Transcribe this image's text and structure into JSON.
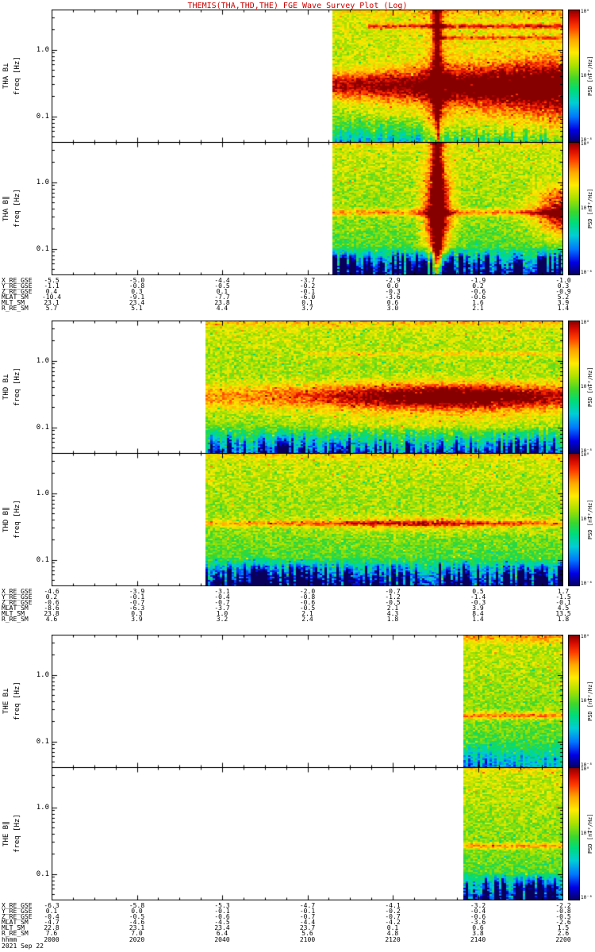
{
  "title": "THEMIS(THA,THD,THE) FGE Wave Survey Plot (Log)",
  "colors": {
    "title": "#cc0000",
    "axis_text": "#000000",
    "background": "#ffffff",
    "colormap_low": "#08005a",
    "colormap_mid": "#ffeb00",
    "colormap_high": "#870000"
  },
  "yaxis": {
    "label": "freq [Hz]",
    "tick_labels": [
      "1.0",
      "0.1"
    ],
    "range_hz": [
      0.04,
      4
    ],
    "scale": "log"
  },
  "colorbar": {
    "label": "PSD [nT²/Hz]",
    "tick_labels": [
      "10⁰",
      "10⁻⁴",
      "10⁻⁸"
    ]
  },
  "time_axis": {
    "label": "hhmm",
    "tick_labels": [
      "2000",
      "2020",
      "2040",
      "2100",
      "2120",
      "2140",
      "2200"
    ],
    "date": "2021 Sep 22"
  },
  "ephemeris_row_labels": [
    "X_RE_GSE",
    "Y_RE_GSE",
    "Z_RE_GSE",
    "MLAT_SM",
    "MLT_SM",
    "R_RE_SM"
  ],
  "groups": [
    {
      "probe": "THA",
      "ephemeris": {
        "X_RE_GSE": [
          "-5.5",
          "-5.0",
          "-4.4",
          "-3.7",
          "-2.9",
          "-1.9",
          "-1.0"
        ],
        "Y_RE_GSE": [
          "-1.1",
          "-0.8",
          "-0.5",
          "-0.2",
          "0.0",
          "0.2",
          "0.3"
        ],
        "Z_RE_GSE": [
          "0.4",
          "0.3",
          "0.1",
          "-0.1",
          "-0.3",
          "-0.6",
          "-0.9"
        ],
        "MLAT_SM": [
          "-10.4",
          "-9.1",
          "-7.7",
          "-6.0",
          "-3.6",
          "-0.6",
          "5.2"
        ],
        "MLT_SM": [
          "23.1",
          "23.4",
          "23.8",
          "0.1",
          "0.6",
          "1.6",
          "3.9"
        ],
        "R_RE_SM": [
          "5.7",
          "5.1",
          "4.4",
          "3.7",
          "3.0",
          "2.1",
          "1.4"
        ]
      }
    },
    {
      "probe": "THD",
      "ephemeris": {
        "X_RE_GSE": [
          "-4.6",
          "-3.9",
          "-3.1",
          "-2.0",
          "-0.7",
          "0.5",
          "1.7"
        ],
        "Y_RE_GSE": [
          "0.2",
          "-0.1",
          "-0.4",
          "-0.8",
          "-1.2",
          "-1.4",
          "-1.5"
        ],
        "Z_RE_GSE": [
          "-0.6",
          "-0.7",
          "-0.7",
          "-0.6",
          "-0.5",
          "-0.3",
          "-0.1"
        ],
        "MLAT_SM": [
          "-8.6",
          "-6.3",
          "-3.7",
          "-0.5",
          "2.1",
          "3.9",
          "4.5"
        ],
        "MLT_SM": [
          "23.8",
          "0.3",
          "1.0",
          "2.1",
          "4.3",
          "8.4",
          "13.5"
        ],
        "R_RE_SM": [
          "4.6",
          "3.9",
          "3.2",
          "2.4",
          "1.8",
          "1.4",
          "1.8"
        ]
      }
    },
    {
      "probe": "THE",
      "ephemeris": {
        "X_RE_GSE": [
          "-6.3",
          "-5.8",
          "-5.3",
          "-4.7",
          "-4.1",
          "-3.2",
          "-2.2"
        ],
        "Y_RE_GSE": [
          "0.1",
          "0.0",
          "-0.1",
          "-0.1",
          "-0.2",
          "-0.4",
          "-0.8"
        ],
        "Z_RE_GSE": [
          "-0.4",
          "-0.5",
          "-0.6",
          "-0.7",
          "-0.7",
          "-0.6",
          "-0.5"
        ],
        "MLAT_SM": [
          "-4.7",
          "-4.6",
          "-4.5",
          "-4.4",
          "-4.2",
          "-3.6",
          "-2.6"
        ],
        "MLT_SM": [
          "22.8",
          "23.1",
          "23.4",
          "23.7",
          "0.1",
          "0.6",
          "1.5"
        ],
        "R_RE_SM": [
          "7.6",
          "7.0",
          "6.4",
          "5.6",
          "4.8",
          "3.8",
          "2.6"
        ]
      }
    }
  ],
  "chart_data": [
    {
      "type": "heatmap",
      "probe": "THA",
      "component": "B⊥",
      "panel": "THA B⊥",
      "ylabel": "freq [Hz]",
      "yscale": "log",
      "yrange_hz": [
        0.04,
        4
      ],
      "time_span_hhmm": [
        "2000",
        "2200"
      ],
      "data_start_frac": 0.55,
      "data_start_hhmm": "2106",
      "colorbar_label": "PSD [nT²/Hz]",
      "bottom_streak": 0.25,
      "features": [
        {
          "kind": "hband",
          "freq": 0.3,
          "sigma_dec": 0.14,
          "amp": 0.5,
          "grow": "right",
          "grow_min": 0.75,
          "widen": "right"
        },
        {
          "kind": "hband",
          "freq": 0.12,
          "sigma_dec": 0.32,
          "amp": 0.22,
          "grow": "right",
          "grow_min": 0.3
        },
        {
          "kind": "hband",
          "freq": 0.05,
          "sigma_dec": 0.2,
          "amp": 0.18,
          "grow": "right",
          "grow_min": 0.1
        },
        {
          "kind": "hband",
          "freq": 1.0,
          "sigma_dec": 0.45,
          "amp": 0.1,
          "grow": "right",
          "grow_min": 0.2
        },
        {
          "kind": "hband",
          "freq": 2.3,
          "sigma_dec": 0.025,
          "amp": 0.26,
          "t_start": 0.62
        },
        {
          "kind": "hband",
          "freq": 1.55,
          "sigma_dec": 0.02,
          "amp": 0.2,
          "t_start": 0.75
        },
        {
          "kind": "topband",
          "depth": 0.07,
          "amp": 0.18,
          "grow": "right"
        },
        {
          "kind": "vline",
          "t": 0.753,
          "w": 0.006,
          "amp": 0.32
        },
        {
          "kind": "vline",
          "t": 0.753,
          "w": 0.02,
          "amp": 0.1
        }
      ]
    },
    {
      "type": "heatmap",
      "probe": "THA",
      "component": "B∥",
      "panel": "THA B∥",
      "ylabel": "freq [Hz]",
      "yscale": "log",
      "yrange_hz": [
        0.04,
        4
      ],
      "time_span_hhmm": [
        "2000",
        "2200"
      ],
      "data_start_frac": 0.55,
      "data_start_hhmm": "2106",
      "colorbar_label": "PSD [nT²/Hz]",
      "bottom_streak": 1.0,
      "features": [
        {
          "kind": "hband",
          "freq": 0.36,
          "sigma_dec": 0.035,
          "amp": 0.24
        },
        {
          "kind": "vline",
          "t": 0.753,
          "w": 0.007,
          "amp": 0.45
        },
        {
          "kind": "blob",
          "t": 0.753,
          "freq": 0.36,
          "st": 0.02,
          "sy": 0.5,
          "amp": 0.5
        },
        {
          "kind": "blob",
          "t": 1.0,
          "freq": 0.36,
          "st": 0.04,
          "sy": 0.25,
          "amp": 0.45
        },
        {
          "kind": "topband",
          "depth": 0.05,
          "amp": 0.1
        }
      ]
    },
    {
      "type": "heatmap",
      "probe": "THD",
      "component": "B⊥",
      "panel": "THD B⊥",
      "ylabel": "freq [Hz]",
      "yscale": "log",
      "yrange_hz": [
        0.04,
        4
      ],
      "time_span_hhmm": [
        "2000",
        "2200"
      ],
      "data_start_frac": 0.302,
      "data_start_hhmm": "2036",
      "colorbar_label": "PSD [nT²/Hz]",
      "bottom_streak": 0.55,
      "features": [
        {
          "kind": "hband",
          "freq": 0.3,
          "sigma_dec": 0.13,
          "amp": 0.52,
          "peak_t": 0.78,
          "peak_w": 0.16,
          "floor": 0.4
        },
        {
          "kind": "hband",
          "freq": 0.15,
          "sigma_dec": 0.28,
          "amp": 0.16,
          "peak_t": 0.78,
          "peak_w": 0.2,
          "floor": 0.3
        },
        {
          "kind": "topband",
          "depth": 0.06,
          "amp": 0.16
        },
        {
          "kind": "hband",
          "freq": 1.3,
          "sigma_dec": 0.02,
          "amp": 0.12,
          "t_start": 0.5
        }
      ]
    },
    {
      "type": "heatmap",
      "probe": "THD",
      "component": "B∥",
      "panel": "THD B∥",
      "ylabel": "freq [Hz]",
      "yscale": "log",
      "yrange_hz": [
        0.04,
        4
      ],
      "time_span_hhmm": [
        "2000",
        "2200"
      ],
      "data_start_frac": 0.302,
      "data_start_hhmm": "2036",
      "colorbar_label": "PSD [nT²/Hz]",
      "bottom_streak": 1.0,
      "features": [
        {
          "kind": "hband",
          "freq": 0.36,
          "sigma_dec": 0.03,
          "amp": 0.26,
          "peak_t": 0.72,
          "peak_w": 0.25,
          "floor": 0.6
        },
        {
          "kind": "hband",
          "freq": 0.36,
          "sigma_dec": 0.09,
          "amp": 0.16,
          "peak_t": 0.72,
          "peak_w": 0.15,
          "floor": 0.15
        },
        {
          "kind": "topband",
          "depth": 0.05,
          "amp": 0.12
        }
      ]
    },
    {
      "type": "heatmap",
      "probe": "THE",
      "component": "B⊥",
      "panel": "THE B⊥",
      "ylabel": "freq [Hz]",
      "yscale": "log",
      "yrange_hz": [
        0.04,
        4
      ],
      "time_span_hhmm": [
        "2000",
        "2200"
      ],
      "data_start_frac": 0.806,
      "data_start_hhmm": "2137",
      "colorbar_label": "PSD [nT²/Hz]",
      "bottom_streak": 0.3,
      "features": [
        {
          "kind": "topband",
          "depth": 0.08,
          "amp": 0.22
        },
        {
          "kind": "hband",
          "freq": 0.25,
          "sigma_dec": 0.035,
          "amp": 0.26
        }
      ]
    },
    {
      "type": "heatmap",
      "probe": "THE",
      "component": "B∥",
      "panel": "THE B∥",
      "ylabel": "freq [Hz]",
      "yscale": "log",
      "yrange_hz": [
        0.04,
        4
      ],
      "time_span_hhmm": [
        "2000",
        "2200"
      ],
      "data_start_frac": 0.806,
      "data_start_hhmm": "2137",
      "colorbar_label": "PSD [nT²/Hz]",
      "bottom_streak": 1.0,
      "features": [
        {
          "kind": "hband",
          "freq": 0.27,
          "sigma_dec": 0.03,
          "amp": 0.24
        },
        {
          "kind": "topband",
          "depth": 0.05,
          "amp": 0.1
        }
      ]
    }
  ]
}
